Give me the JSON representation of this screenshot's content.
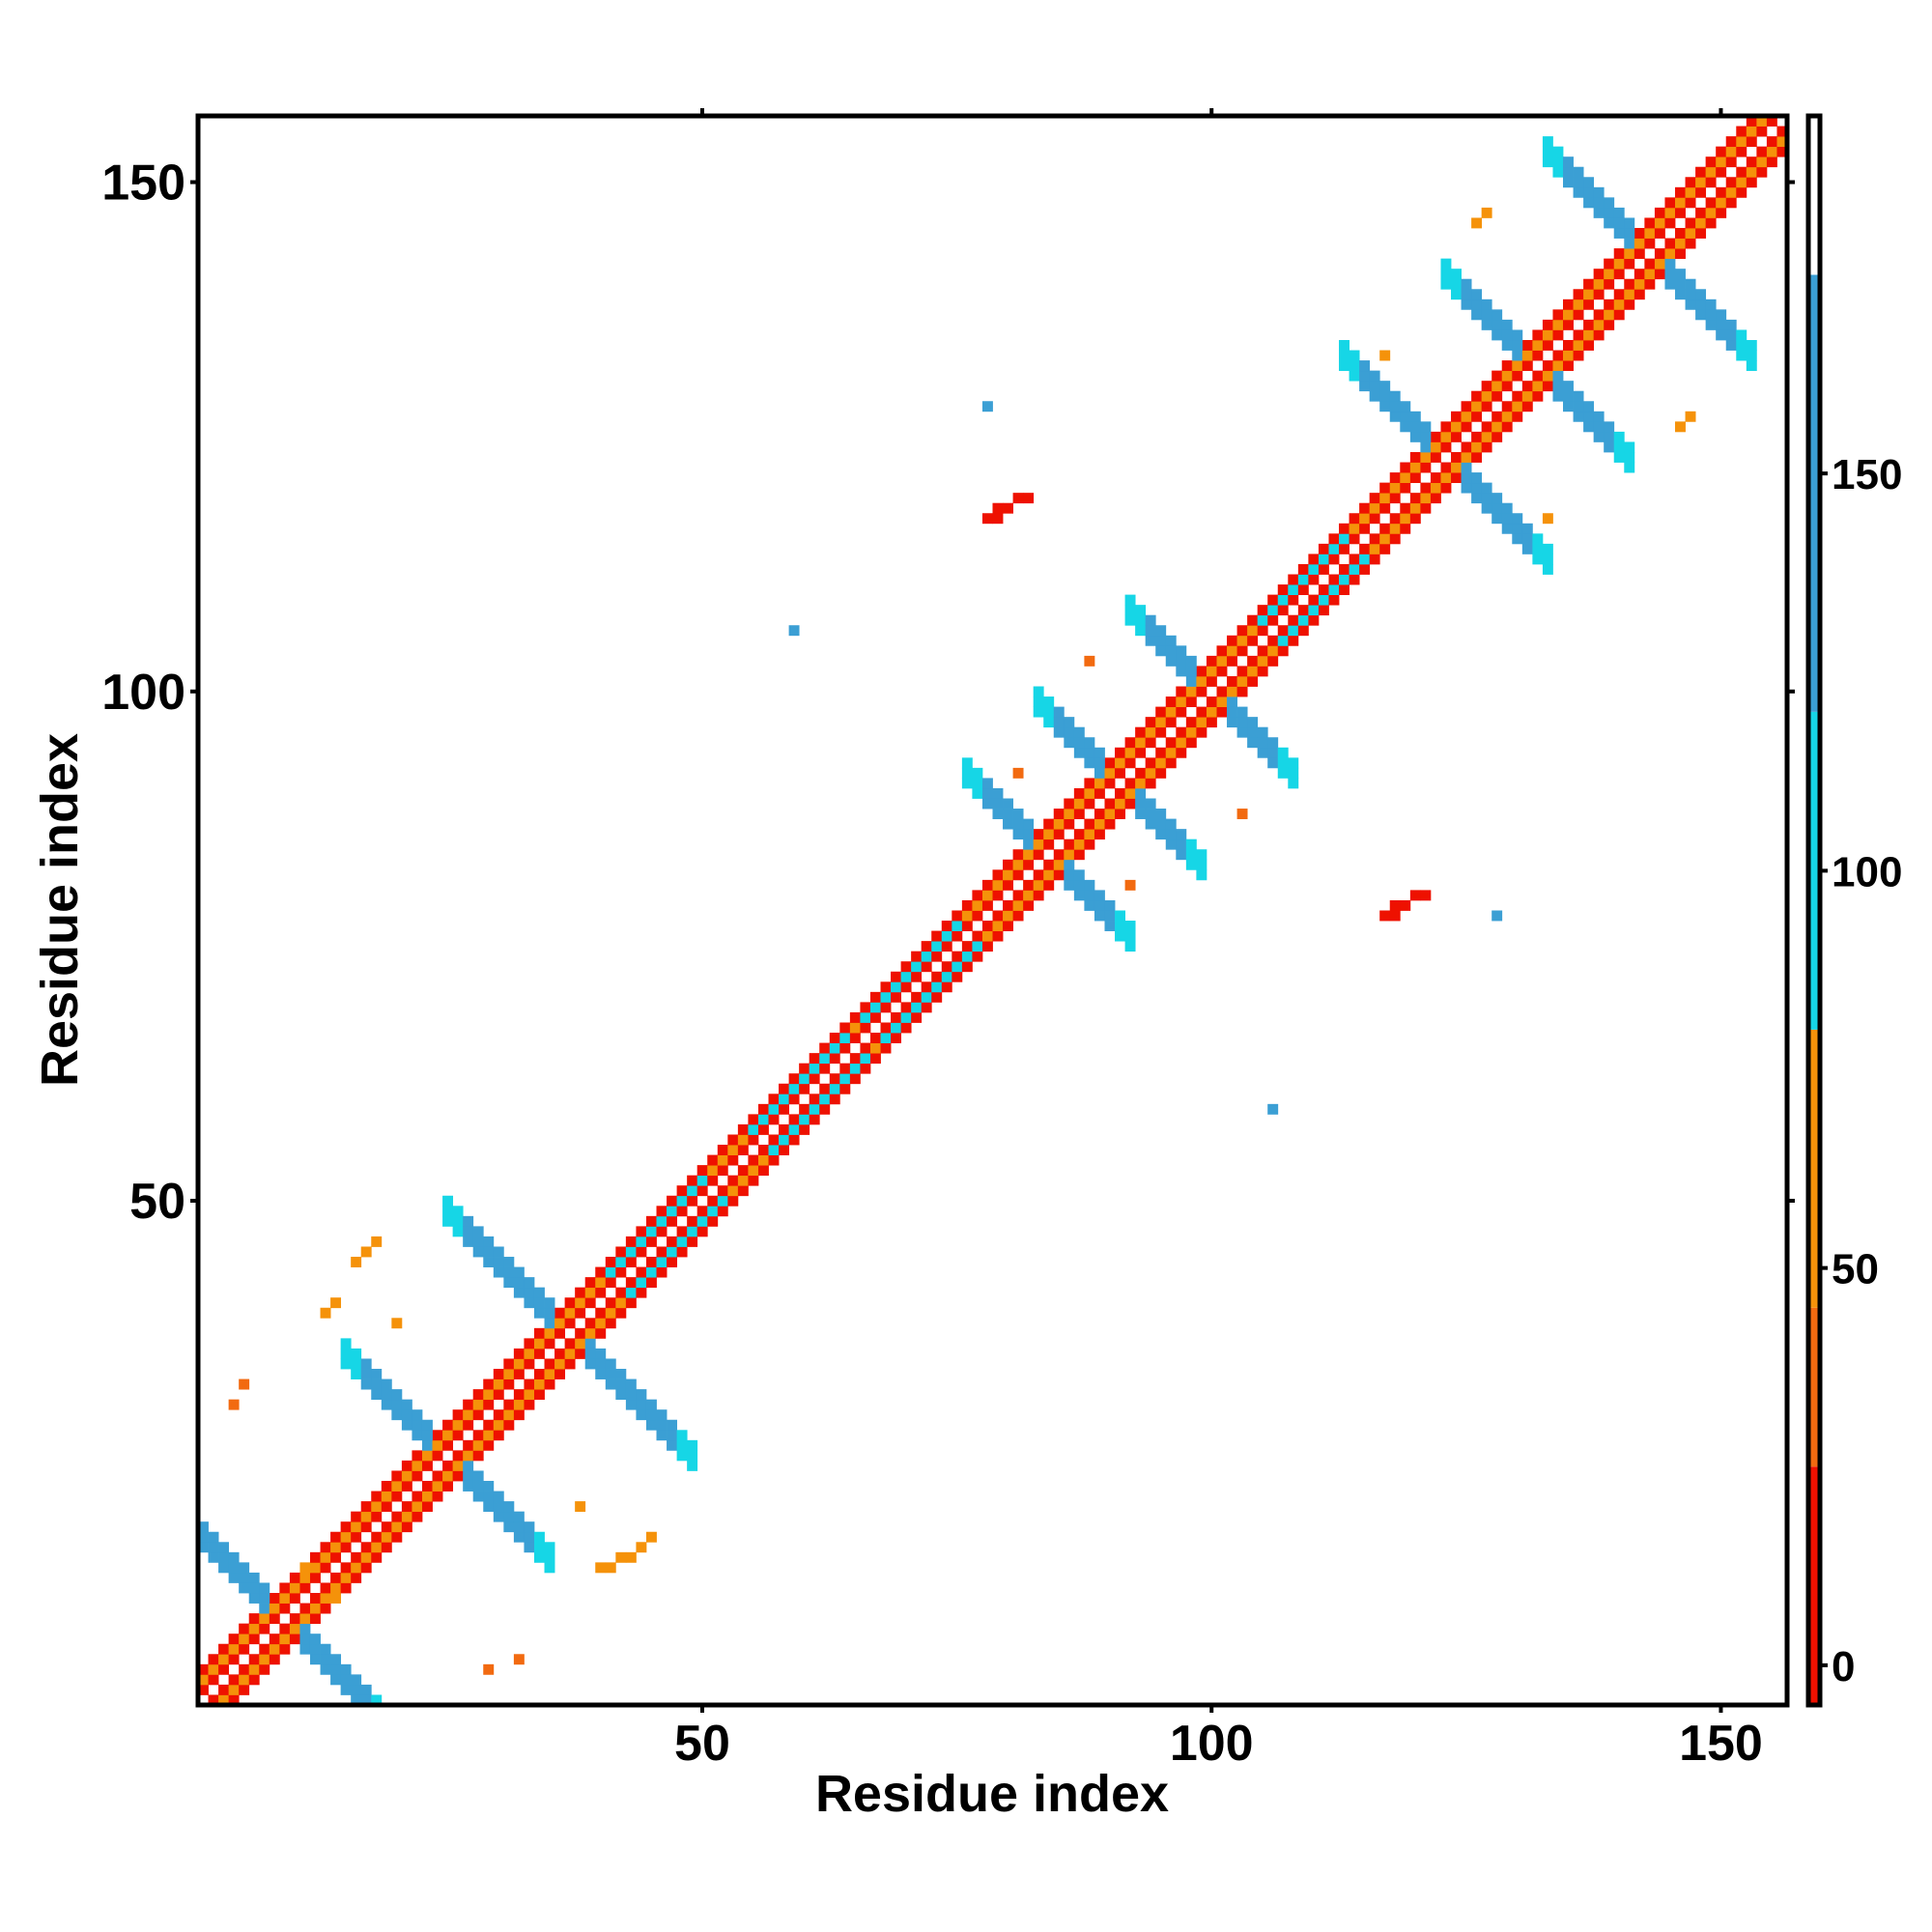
{
  "chart_data": {
    "type": "heatmap",
    "xlabel": "Residue index",
    "ylabel": "Residue index",
    "xlim": [
      1,
      156
    ],
    "ylim": [
      1,
      156
    ],
    "x_ticks": [
      50,
      100,
      150
    ],
    "y_ticks": [
      50,
      100,
      150
    ],
    "grid": false,
    "legend": "colorbar-right",
    "colorbar": {
      "range": [
        -5,
        195
      ],
      "ticks": [
        0,
        50,
        100,
        150
      ],
      "segments": [
        {
          "from": -5,
          "to": 25,
          "color": "#ee1100"
        },
        {
          "from": 25,
          "to": 45,
          "color": "#f26a10"
        },
        {
          "from": 45,
          "to": 75,
          "color": "#f5920a"
        },
        {
          "from": 75,
          "to": 80,
          "color": "#f5920a"
        },
        {
          "from": 80,
          "to": 120,
          "color": "#16d6e6"
        },
        {
          "from": 120,
          "to": 175,
          "color": "#3b9fd4"
        },
        {
          "from": 175,
          "to": 195,
          "color": "#ffffff"
        }
      ]
    },
    "features": [
      {
        "kind": "diagonal",
        "x_start": 1,
        "x_end": 156,
        "width": 3,
        "value": 20
      },
      {
        "kind": "cross",
        "center": [
          9,
          9
        ],
        "arm": 10,
        "value": 150
      },
      {
        "kind": "cross",
        "center": [
          25,
          25
        ],
        "arm": 10,
        "value": 150
      },
      {
        "kind": "cross",
        "center": [
          37,
          37
        ],
        "arm": 12,
        "value": 150
      },
      {
        "kind": "cross",
        "center": [
          84,
          84
        ],
        "arm": 8,
        "value": 150
      },
      {
        "kind": "cross",
        "center": [
          91,
          91
        ],
        "arm": 8,
        "value": 150
      },
      {
        "kind": "cross",
        "center": [
          100,
          100
        ],
        "arm": 8,
        "value": 150
      },
      {
        "kind": "cross",
        "center": [
          123,
          123
        ],
        "arm": 10,
        "value": 150
      },
      {
        "kind": "cross",
        "center": [
          132,
          132
        ],
        "arm": 9,
        "value": 150
      },
      {
        "kind": "cross",
        "center": [
          143,
          143
        ],
        "arm": 10,
        "value": 150
      },
      {
        "kind": "diag_segment",
        "x_start": 41,
        "x_end": 50,
        "value": 110
      },
      {
        "kind": "diag_segment",
        "x_start": 55,
        "x_end": 64,
        "value": 100
      },
      {
        "kind": "diag_segment",
        "x_start": 66,
        "x_end": 75,
        "value": 90
      },
      {
        "kind": "diag_segment",
        "x_start": 105,
        "x_end": 113,
        "value": 100
      },
      {
        "kind": "blob",
        "points": [
          [
            79,
            118
          ],
          [
            80,
            118
          ],
          [
            81,
            119
          ],
          [
            82,
            119
          ],
          [
            78,
            117
          ],
          [
            79,
            117
          ]
        ],
        "value": 0
      },
      {
        "kind": "blob",
        "points": [
          [
            118,
            79
          ],
          [
            119,
            79
          ],
          [
            120,
            80
          ],
          [
            121,
            80
          ],
          [
            117,
            78
          ],
          [
            118,
            78
          ]
        ],
        "value": 0
      },
      {
        "kind": "blob",
        "points": [
          [
            16,
            44
          ],
          [
            17,
            45
          ],
          [
            18,
            46
          ],
          [
            13,
            39
          ],
          [
            14,
            40
          ]
        ],
        "value": 55
      },
      {
        "kind": "blob",
        "points": [
          [
            42,
            15
          ],
          [
            43,
            15
          ],
          [
            44,
            16
          ],
          [
            45,
            17
          ],
          [
            40,
            14
          ],
          [
            41,
            14
          ]
        ],
        "value": 55
      },
      {
        "kind": "blob",
        "points": [
          [
            32,
            5
          ],
          [
            5,
            32
          ],
          [
            4,
            30
          ],
          [
            29,
            4
          ]
        ],
        "value": 40
      },
      {
        "kind": "blob",
        "points": [
          [
            126,
            146
          ],
          [
            127,
            147
          ],
          [
            146,
            126
          ],
          [
            147,
            127
          ],
          [
            133,
            117
          ],
          [
            117,
            133
          ]
        ],
        "value": 55
      },
      {
        "kind": "blob",
        "points": [
          [
            103,
            88
          ],
          [
            88,
            103
          ],
          [
            92,
            81
          ],
          [
            81,
            92
          ]
        ],
        "value": 40
      },
      {
        "kind": "blob",
        "points": [
          [
            78,
            128
          ],
          [
            128,
            78
          ],
          [
            59,
            106
          ],
          [
            106,
            59
          ]
        ],
        "value": 150
      },
      {
        "kind": "blob",
        "points": [
          [
            11,
            14
          ],
          [
            14,
            11
          ],
          [
            20,
            38
          ],
          [
            38,
            20
          ]
        ],
        "value": 55
      }
    ]
  }
}
